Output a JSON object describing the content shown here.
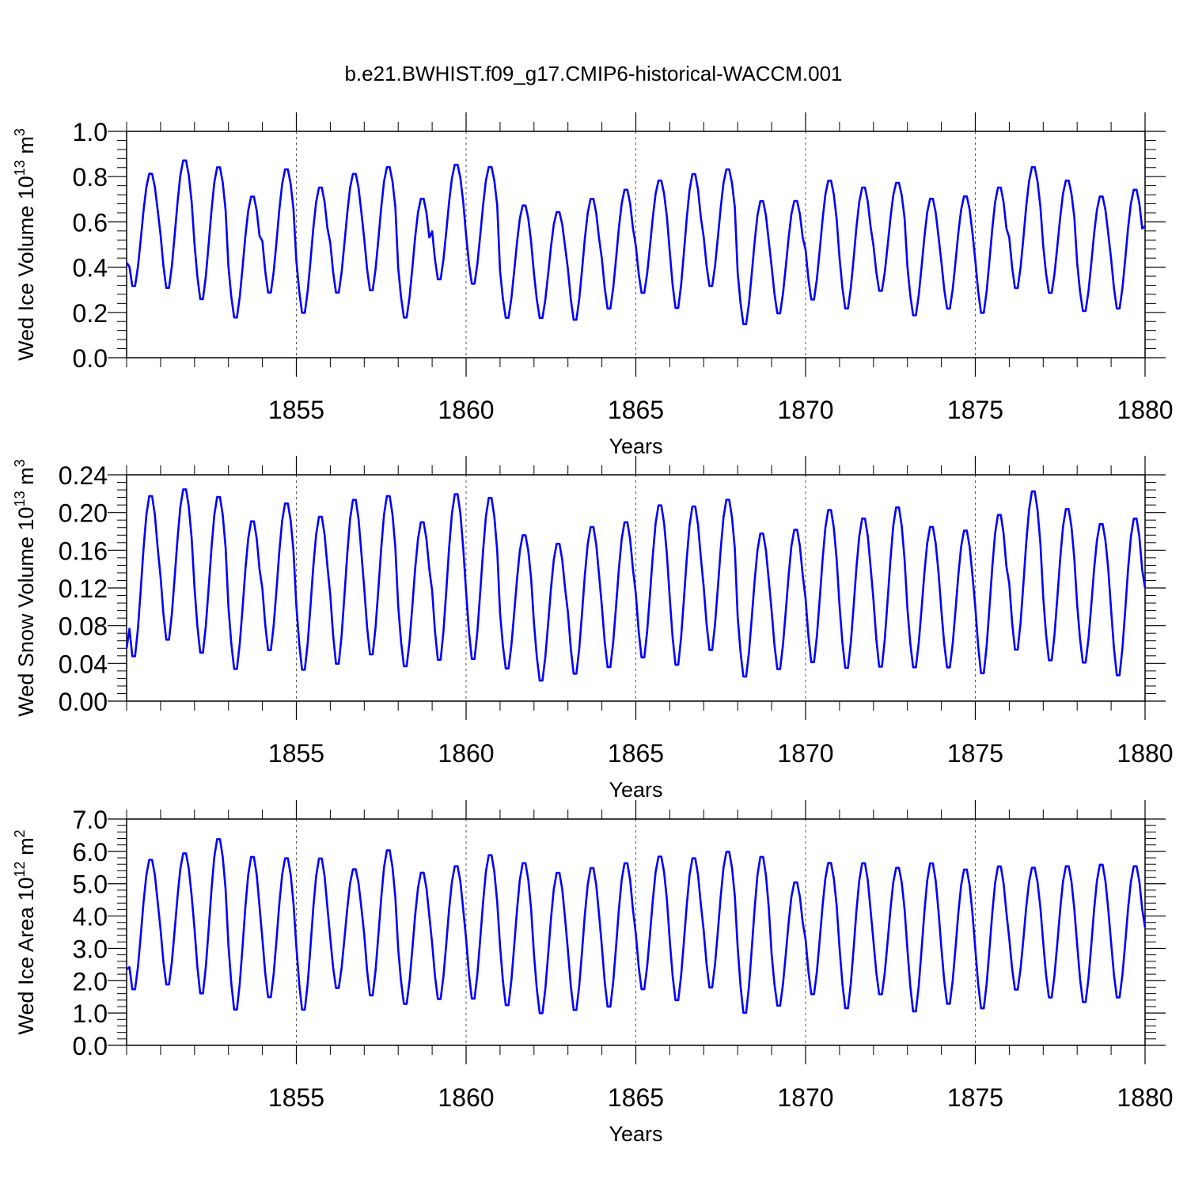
{
  "figure_title": "b.e21.BWHIST.f09_g17.CMIP6-historical-WACCM.001",
  "colors": {
    "line": "#0000ff",
    "axis": "#000000",
    "grid": "#555555"
  },
  "chart_data": [
    {
      "type": "line",
      "ylabel_main": "Wed Ice Volume 10",
      "ylabel_exp": "13",
      "ylabel_unit": "m",
      "ylabel_unit_exp": "3",
      "xlabel": "Years",
      "xlim": [
        1850.0,
        1880.0
      ],
      "ylim": [
        0.0,
        1.0
      ],
      "xticks": [
        1855,
        1860,
        1865,
        1870,
        1875,
        1880
      ],
      "yticks": [
        0.0,
        0.2,
        0.4,
        0.6,
        0.8,
        1.0
      ],
      "yticklabels": [
        "0.0",
        "0.2",
        "0.4",
        "0.6",
        "0.8",
        "1.0"
      ],
      "dashed_xgrid": [
        1855,
        1860,
        1865,
        1870,
        1875
      ],
      "peak_month": 8.5,
      "maxima": [
        0.82,
        0.88,
        0.85,
        0.72,
        0.84,
        0.76,
        0.82,
        0.85,
        0.71,
        0.86,
        0.85,
        0.68,
        0.65,
        0.71,
        0.75,
        0.79,
        0.82,
        0.84,
        0.7,
        0.7,
        0.79,
        0.76,
        0.78,
        0.71,
        0.72,
        0.76,
        0.85,
        0.79,
        0.72,
        0.75
      ],
      "minima": [
        0.3,
        0.29,
        0.24,
        0.16,
        0.27,
        0.18,
        0.27,
        0.28,
        0.16,
        0.33,
        0.31,
        0.16,
        0.16,
        0.15,
        0.2,
        0.27,
        0.2,
        0.3,
        0.13,
        0.18,
        0.24,
        0.2,
        0.28,
        0.17,
        0.2,
        0.18,
        0.29,
        0.27,
        0.19,
        0.2
      ],
      "start_value": 0.42,
      "end_value": 0.58
    },
    {
      "type": "line",
      "ylabel_main": "Wed Snow Volume 10",
      "ylabel_exp": "13",
      "ylabel_unit": "m",
      "ylabel_unit_exp": "3",
      "xlabel": "Years",
      "xlim": [
        1850.0,
        1880.0
      ],
      "ylim": [
        0.0,
        0.24
      ],
      "xticks": [
        1855,
        1860,
        1865,
        1870,
        1875,
        1880
      ],
      "yticks": [
        0.0,
        0.04,
        0.08,
        0.12,
        0.16,
        0.2,
        0.24
      ],
      "yticklabels": [
        "0.00",
        "0.04",
        "0.08",
        "0.12",
        "0.16",
        "0.20",
        "0.24"
      ],
      "dashed_xgrid": [
        1855,
        1860,
        1865,
        1870,
        1875
      ],
      "peak_month": 8.5,
      "maxima": [
        0.22,
        0.227,
        0.219,
        0.193,
        0.212,
        0.198,
        0.216,
        0.22,
        0.192,
        0.222,
        0.218,
        0.178,
        0.169,
        0.187,
        0.192,
        0.21,
        0.209,
        0.216,
        0.18,
        0.184,
        0.205,
        0.196,
        0.208,
        0.187,
        0.183,
        0.2,
        0.225,
        0.206,
        0.19,
        0.196
      ],
      "minima": [
        0.042,
        0.06,
        0.046,
        0.029,
        0.049,
        0.028,
        0.034,
        0.044,
        0.032,
        0.038,
        0.039,
        0.03,
        0.017,
        0.024,
        0.031,
        0.041,
        0.033,
        0.049,
        0.021,
        0.029,
        0.036,
        0.03,
        0.031,
        0.031,
        0.031,
        0.024,
        0.049,
        0.038,
        0.036,
        0.022
      ],
      "start_value": 0.056,
      "end_value": 0.12
    },
    {
      "type": "line",
      "ylabel_main": "Wed Ice Area 10",
      "ylabel_exp": "12",
      "ylabel_unit": "m",
      "ylabel_unit_exp": "2",
      "xlabel": "Years",
      "xlim": [
        1850.0,
        1880.0
      ],
      "ylim": [
        0.0,
        7.0
      ],
      "xticks": [
        1855,
        1860,
        1865,
        1870,
        1875,
        1880
      ],
      "yticks": [
        0.0,
        1.0,
        2.0,
        3.0,
        4.0,
        5.0,
        6.0,
        7.0
      ],
      "yticklabels": [
        "0.0",
        "1.0",
        "2.0",
        "3.0",
        "4.0",
        "5.0",
        "6.0",
        "7.0"
      ],
      "dashed_xgrid": [
        1855,
        1860,
        1865,
        1870,
        1875
      ],
      "peak_month": 8.5,
      "maxima": [
        5.8,
        6.0,
        6.45,
        5.9,
        5.85,
        5.85,
        5.5,
        6.1,
        5.4,
        5.6,
        5.95,
        5.7,
        5.4,
        5.55,
        5.7,
        5.9,
        5.85,
        6.05,
        5.9,
        5.1,
        5.7,
        5.7,
        5.55,
        5.7,
        5.5,
        5.6,
        5.55,
        5.6,
        5.65,
        5.6
      ],
      "minima": [
        1.6,
        1.75,
        1.45,
        0.95,
        1.35,
        0.95,
        1.65,
        1.4,
        1.15,
        1.3,
        1.3,
        1.1,
        0.85,
        0.95,
        1.05,
        1.6,
        1.25,
        1.65,
        0.85,
        1.1,
        1.45,
        1.0,
        1.45,
        0.9,
        1.15,
        1.0,
        1.6,
        1.35,
        1.2,
        1.35
      ],
      "start_value": 2.35,
      "end_value": 3.65
    }
  ]
}
